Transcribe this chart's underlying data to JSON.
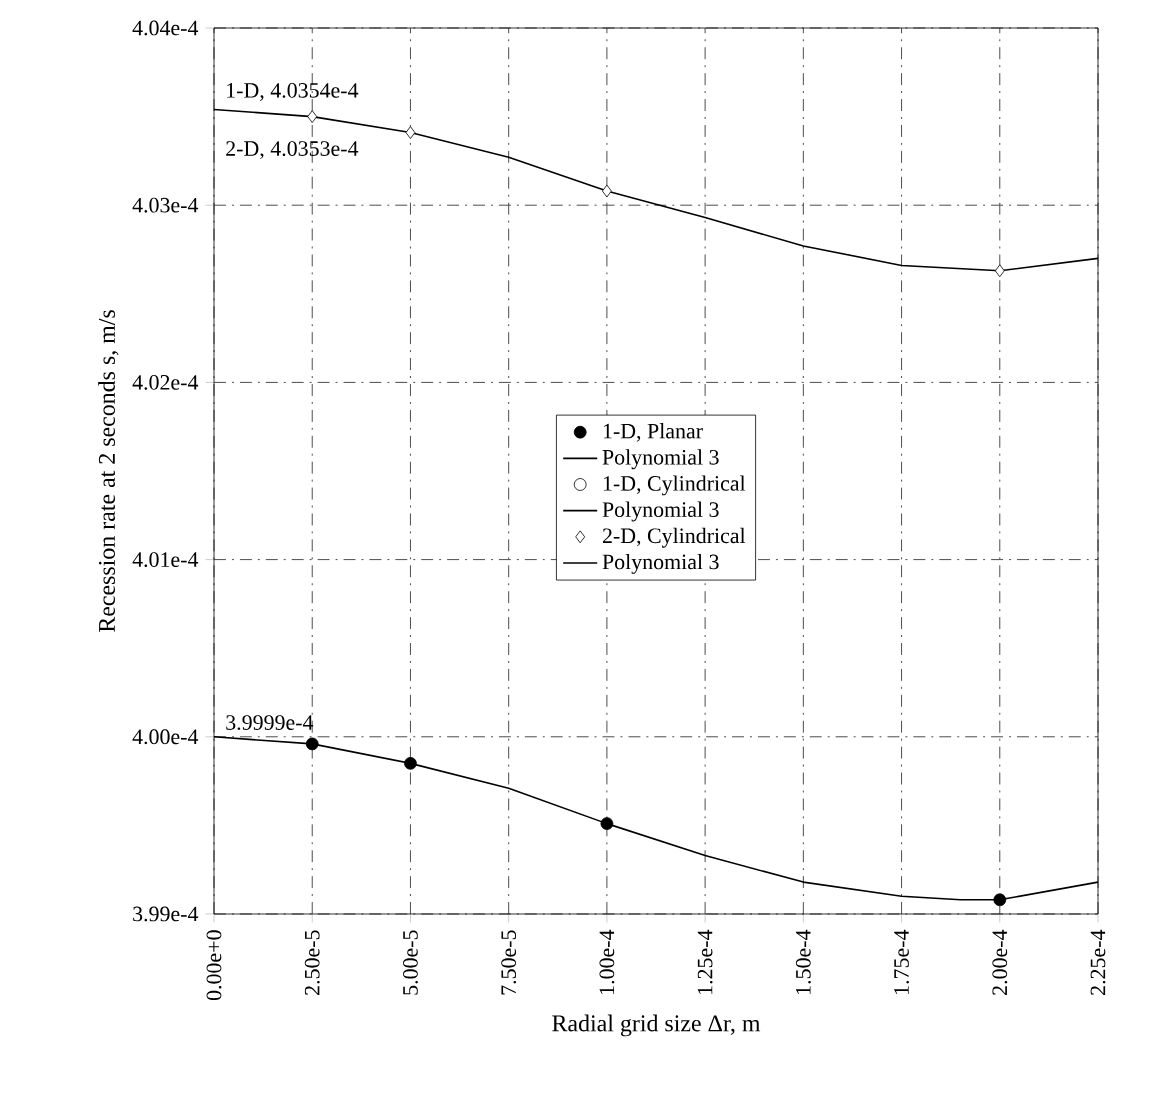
{
  "chart_data": {
    "type": "line",
    "xlabel": "Radial grid size Δr, m",
    "ylabel": "Recession rate at 2 seconds s, m/s",
    "xlim": [
      0,
      0.000225
    ],
    "ylim": [
      0.000399,
      0.000404
    ],
    "xticks": [
      {
        "value": 0,
        "label": "0.00e+0"
      },
      {
        "value": 2.5e-05,
        "label": "2.50e-5"
      },
      {
        "value": 5e-05,
        "label": "5.00e-5"
      },
      {
        "value": 7.5e-05,
        "label": "7.50e-5"
      },
      {
        "value": 0.0001,
        "label": "1.00e-4"
      },
      {
        "value": 0.000125,
        "label": "1.25e-4"
      },
      {
        "value": 0.00015,
        "label": "1.50e-4"
      },
      {
        "value": 0.000175,
        "label": "1.75e-4"
      },
      {
        "value": 0.0002,
        "label": "2.00e-4"
      },
      {
        "value": 0.000225,
        "label": "2.25e-4"
      }
    ],
    "yticks": [
      {
        "value": 0.000399,
        "label": "3.99e-4"
      },
      {
        "value": 0.0004,
        "label": "4.00e-4"
      },
      {
        "value": 0.000401,
        "label": "4.01e-4"
      },
      {
        "value": 0.000402,
        "label": "4.02e-4"
      },
      {
        "value": 0.000403,
        "label": "4.03e-4"
      },
      {
        "value": 0.000404,
        "label": "4.04e-4"
      }
    ],
    "grid": true,
    "legend": "center",
    "series": [
      {
        "name": "1-D, Planar",
        "type": "scatter",
        "marker": "circle",
        "color": "#000000",
        "x": [
          2.5e-05,
          5e-05,
          0.0001,
          0.0002
        ],
        "values": [
          0.00039996,
          0.00039985,
          0.00039951,
          0.00039908
        ]
      },
      {
        "name": "Polynomial 3",
        "marker": "none",
        "color": "#000000",
        "x": [
          0,
          2.5e-05,
          5e-05,
          7.5e-05,
          0.0001,
          0.000125,
          0.00015,
          0.000175,
          0.00019,
          0.0002,
          0.000225
        ],
        "values": [
          0.0004,
          0.00039996,
          0.00039985,
          0.00039971,
          0.00039951,
          0.00039933,
          0.00039918,
          0.0003991,
          0.00039908,
          0.00039908,
          0.00039918
        ]
      },
      {
        "name": "1-D, Cylindrical",
        "type": "scatter",
        "marker": "circle",
        "color": "#ffffff"
      },
      {
        "name": "Polynomial 3",
        "marker": "none",
        "color": "#000000"
      },
      {
        "name": "2-D, Cylindrical",
        "type": "scatter",
        "marker": "diamond",
        "color": "#ffffff",
        "x": [
          2.5e-05,
          5e-05,
          0.0001,
          0.0002
        ],
        "values": [
          0.0004035,
          0.00040341,
          0.00040308,
          0.00040263
        ]
      },
      {
        "name": "Polynomial 3",
        "marker": "none",
        "color": "#000000",
        "x": [
          0,
          2.5e-05,
          5e-05,
          7.5e-05,
          0.0001,
          0.000125,
          0.00015,
          0.000175,
          0.0002,
          0.000225
        ],
        "values": [
          0.00040354,
          0.0004035,
          0.00040341,
          0.00040327,
          0.00040308,
          0.00040293,
          0.00040277,
          0.00040266,
          0.00040263,
          0.0004027
        ]
      }
    ],
    "annotations": [
      "1-D, 4.0354e-4",
      "2-D, 4.0353e-4",
      "3.9999e-4"
    ]
  }
}
